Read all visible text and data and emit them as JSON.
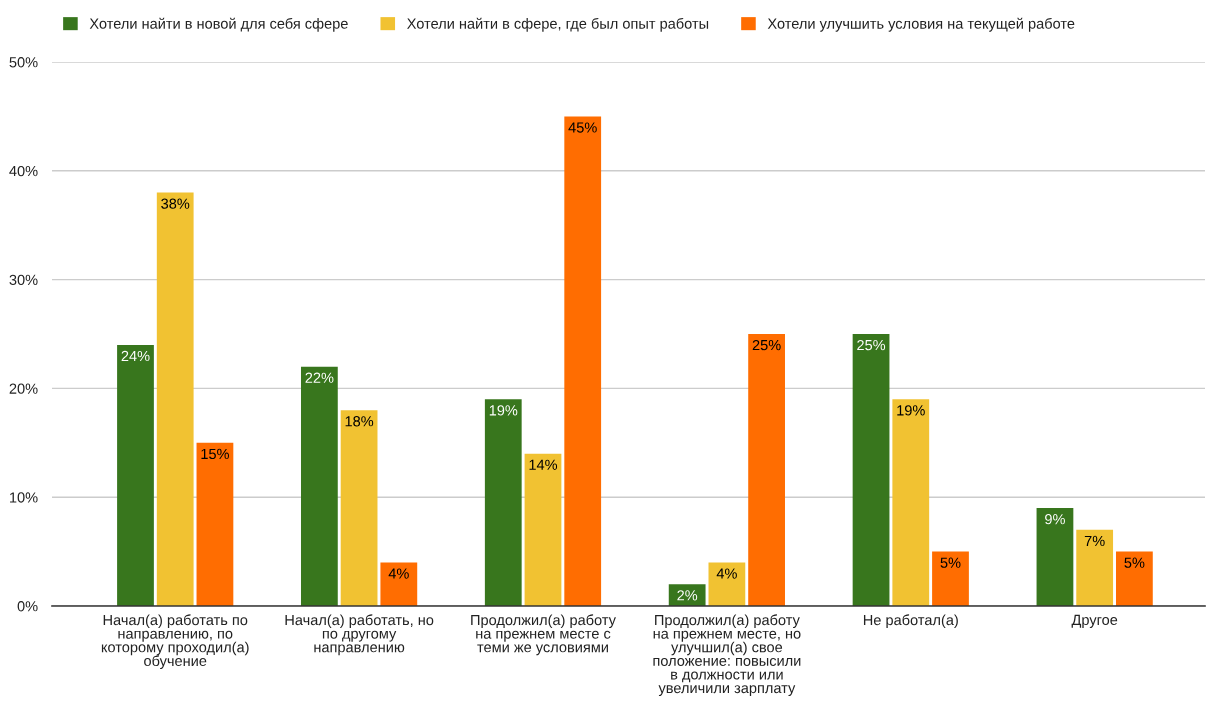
{
  "chart_data": {
    "type": "bar",
    "categories": [
      "Начал(а) работать по направлению, по которому проходил(а) обучение",
      "Начал(а) работать, но по другому направлению",
      "Продолжил(а) работу на прежнем месте с теми же условиями",
      "Продолжил(а) работу на прежнем месте, но улучшил(а) свое положение: повысили в должности или увеличили зарплату",
      "Не работал(а)",
      "Другое"
    ],
    "series": [
      {
        "name": "Хотели найти в новой для себя сфере",
        "color": "#38761d",
        "values": [
          24,
          22,
          19,
          2,
          25,
          9
        ],
        "value_labels": [
          "24%",
          "22%",
          "19%",
          "2%",
          "25%",
          "9%"
        ]
      },
      {
        "name": "Хотели найти в сфере, где был опыт работы",
        "color": "#f1c232",
        "values": [
          38,
          18,
          14,
          4,
          19,
          7
        ],
        "value_labels": [
          "38%",
          "18%",
          "14%",
          "4%",
          "19%",
          "7%"
        ]
      },
      {
        "name": "Хотели улучшить условия на текущей работе",
        "color": "#ff6d01",
        "values": [
          15,
          4,
          45,
          25,
          5,
          5
        ],
        "value_labels": [
          "15%",
          "4%",
          "45%",
          "25%",
          "5%",
          "5%"
        ]
      }
    ],
    "ylim": [
      0,
      50
    ],
    "yticks": [
      {
        "value": 0,
        "label": "0%"
      },
      {
        "value": 10,
        "label": "10%"
      },
      {
        "value": 20,
        "label": "20%"
      },
      {
        "value": 30,
        "label": "30%"
      },
      {
        "value": 40,
        "label": "40%"
      },
      {
        "value": 50,
        "label": "50%"
      }
    ],
    "grid": "y",
    "legend": "top left"
  }
}
